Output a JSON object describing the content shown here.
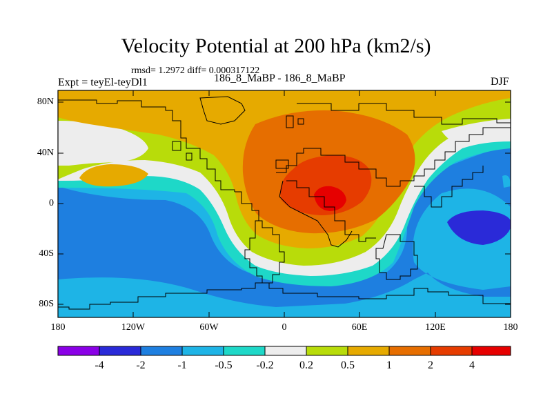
{
  "title": "Velocity Potential at 200 hPa (km2/s)",
  "stats_line": "rmsd= 1.2972 diff= 0.000317122",
  "experiment": "Expt = teyEl-teyDl1",
  "center_label": "186_8_MaBP - 186_8_MaBP",
  "season": "DJF",
  "lat_ticks": [
    "80N",
    "40N",
    "0",
    "40S",
    "80S"
  ],
  "lon_ticks": [
    "180",
    "120W",
    "60W",
    "0",
    "60E",
    "120E",
    "180"
  ],
  "colorbar": {
    "labels": [
      "-4",
      "-2",
      "-1",
      "-0.5",
      "-0.2",
      "0.2",
      "0.5",
      "1",
      "2",
      "4"
    ],
    "colors": [
      "#8a00e6",
      "#2a2ad8",
      "#1e7fe0",
      "#1eb4e6",
      "#1ed8c8",
      "#ededed",
      "#b8dc0a",
      "#e6aa00",
      "#e66e00",
      "#e63c00",
      "#e60000"
    ]
  },
  "palette": {
    "blue": "#1e7fe0",
    "deep_blue": "#2a2ad8",
    "light_blue": "#1eb4e6",
    "teal": "#1ed8c8",
    "white": "#ededed",
    "green": "#b8dc0a",
    "yellow": "#e6aa00",
    "orange": "#e66e00",
    "red_orange": "#e63c00",
    "red": "#e60000"
  }
}
